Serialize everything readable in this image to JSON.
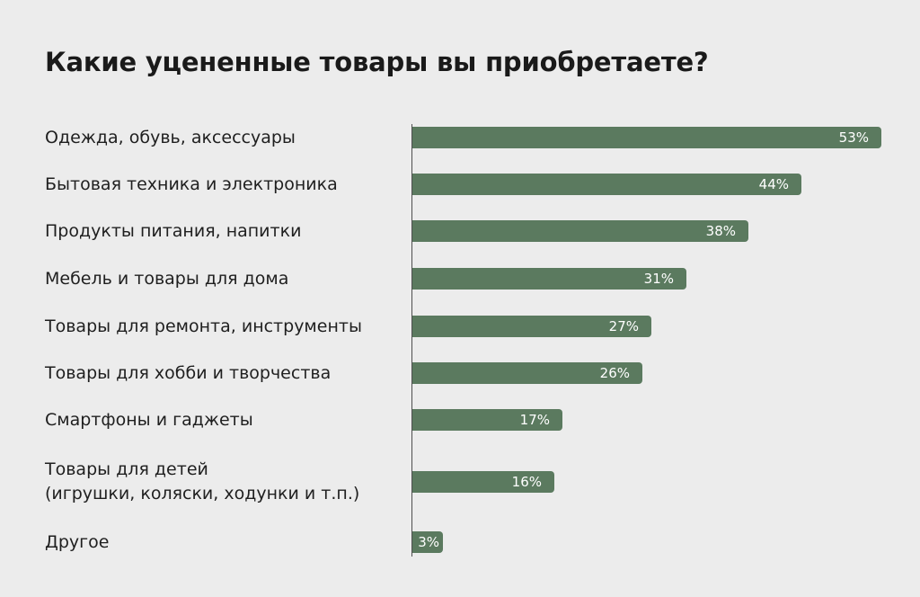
{
  "chart_data": {
    "type": "bar",
    "orientation": "horizontal",
    "title": "Какие уцененные товары вы приобретаете?",
    "categories": [
      "Одежда, обувь, аксессуары",
      "Бытовая техника и электроника",
      "Продукты питания, напитки",
      "Мебель и товары для дома",
      "Товары для ремонта, инструменты",
      "Товары для хобби и творчества",
      "Смартфоны и гаджеты",
      "Товары для детей\n(игрушки, коляски, ходунки и т.п.)",
      "Другое"
    ],
    "values": [
      53,
      44,
      38,
      31,
      27,
      26,
      17,
      16,
      3
    ],
    "value_labels": [
      "53%",
      "44%",
      "38%",
      "31%",
      "27%",
      "26%",
      "17%",
      "16%",
      "3%"
    ],
    "unit": "%",
    "xlim": [
      0,
      53
    ],
    "bar_color": "#5b7a5f",
    "grid": false,
    "legend": "none"
  }
}
